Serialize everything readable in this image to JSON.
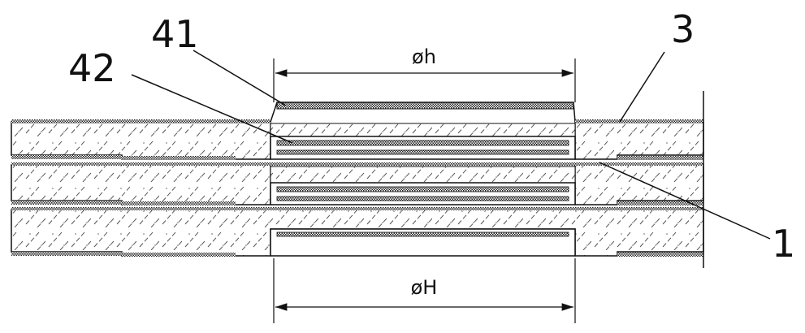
{
  "labels": {
    "part_41": "41",
    "part_42": "42",
    "part_3": "3",
    "part_1": "1"
  },
  "dimensions": {
    "top": "øh",
    "bottom": "øH"
  },
  "colors": {
    "ink": "#111111",
    "hatch": "#444444",
    "background": "#ffffff"
  }
}
